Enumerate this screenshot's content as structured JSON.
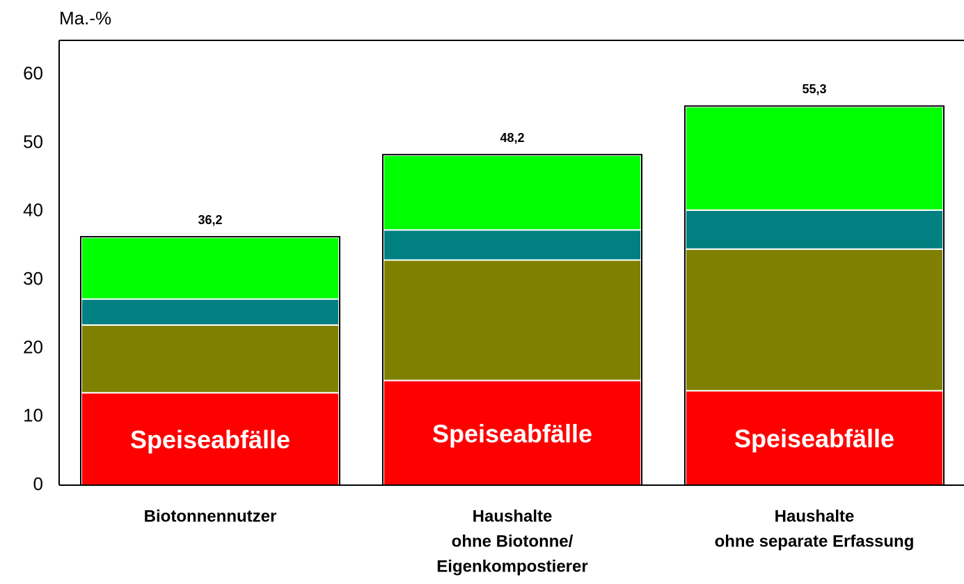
{
  "chart_data": {
    "type": "stacked_bar",
    "y_axis_label": "Ma.-%",
    "categories": [
      [
        "Biotonnennutzer"
      ],
      [
        "Haushalte",
        "ohne Biotonne/",
        "Eigenkompostierer"
      ],
      [
        "Haushalte",
        "ohne separate Erfassung"
      ]
    ],
    "series": [
      {
        "name": "Speiseabfälle",
        "color": "#ff0000",
        "values": [
          13.5,
          15.3,
          13.8
        ]
      },
      {
        "color": "#808000",
        "values": [
          9.9,
          17.6,
          20.7
        ]
      },
      {
        "color": "#008080",
        "values": [
          3.8,
          4.4,
          5.7
        ]
      },
      {
        "color": "#00ff00",
        "values": [
          9.0,
          10.9,
          15.1
        ]
      }
    ],
    "totals": [
      36.2,
      48.2,
      55.3
    ],
    "total_labels": [
      "36,2",
      "48,2",
      "55,3"
    ],
    "ylim": [
      0,
      65
    ],
    "yticks": [
      0,
      10,
      20,
      30,
      40,
      50,
      60
    ],
    "grid": false
  }
}
